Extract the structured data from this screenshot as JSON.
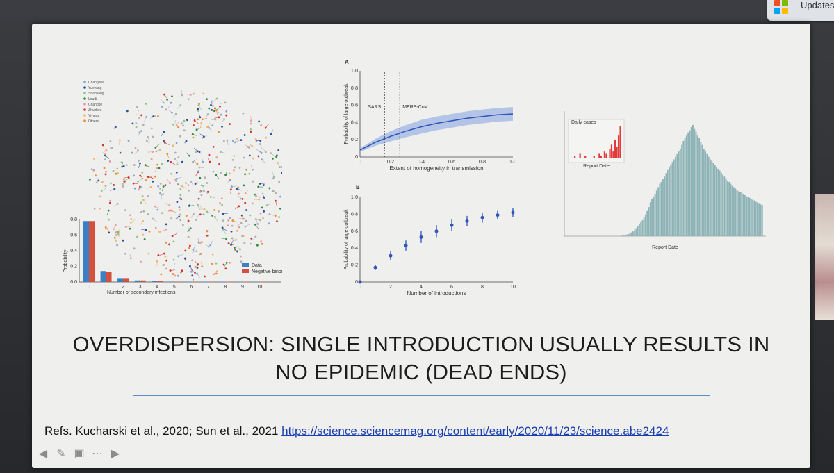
{
  "window": {
    "updates_label": "Updates"
  },
  "slide": {
    "title_line1": "OVERDISPERSION: SINGLE INTRODUCTION USUALLY RESULTS IN",
    "title_line2": "NO EPIDEMIC (DEAD ENDS)",
    "refs_text": "Refs. Kucharski et al., 2020; Sun et al., 2021 ",
    "refs_link": "https://science.sciencemag.org/content/early/2020/11/23/science.abe2424"
  },
  "network": {
    "legend": [
      {
        "label": "Changsha",
        "color": "#7fa6d6"
      },
      {
        "label": "Yueyang",
        "color": "#2b4fa0"
      },
      {
        "label": "Shaoyang",
        "color": "#8cc48a"
      },
      {
        "label": "Loudi",
        "color": "#2d8a3e"
      },
      {
        "label": "Changde",
        "color": "#e99aa0"
      },
      {
        "label": "Zhuzhou",
        "color": "#d3322c"
      },
      {
        "label": "Yiyang",
        "color": "#f2b46b"
      },
      {
        "label": "Others",
        "color": "#f08a2a"
      }
    ]
  },
  "colors": {
    "data_bar": "#3c7fc4",
    "nb_bar": "#d3503c",
    "curve": "#2f55b8",
    "band": "#9fb6e4",
    "histo": "#8fb4b8",
    "inset": "#e03a3a"
  },
  "chart_data": [
    {
      "type": "bar",
      "xlabel": "Number of secondary infections",
      "ylabel": "Probability",
      "categories": [
        "0",
        "1",
        "2",
        "3",
        "4",
        "5",
        "6",
        "7",
        "8",
        "9",
        "10"
      ],
      "series": [
        {
          "name": "Data",
          "values": [
            0.78,
            0.14,
            0.05,
            0.02,
            0.01,
            0.005,
            0.003,
            0.002,
            0.001,
            0.001,
            0.001
          ]
        },
        {
          "name": "Negative binomial",
          "values": [
            0.78,
            0.13,
            0.05,
            0.02,
            0.01,
            0.005,
            0.003,
            0.002,
            0.001,
            0.001,
            0.001
          ]
        }
      ],
      "ylim": [
        0,
        0.8
      ],
      "yticks": [
        "0.0",
        "0.2",
        "0.4",
        "0.6",
        "0.8"
      ],
      "legend": "bottom-right"
    },
    {
      "type": "line",
      "panel": "A",
      "xlabel": "Extent of homogeneity in transmission",
      "ylabel": "Probability of large outbreak",
      "xlim": [
        0,
        1.0
      ],
      "ylim": [
        0,
        1.0
      ],
      "xticks": [
        "0",
        "0·2",
        "0·4",
        "0·6",
        "0·8",
        "1·0"
      ],
      "yticks": [
        "0",
        "0·2",
        "0·4",
        "0·6",
        "0·8",
        "1·0"
      ],
      "x": [
        0,
        0.1,
        0.2,
        0.3,
        0.4,
        0.5,
        0.6,
        0.7,
        0.8,
        0.9,
        1.0
      ],
      "y": [
        0.08,
        0.17,
        0.24,
        0.3,
        0.35,
        0.39,
        0.42,
        0.45,
        0.47,
        0.49,
        0.5
      ],
      "lower": [
        0.06,
        0.13,
        0.18,
        0.23,
        0.27,
        0.31,
        0.34,
        0.37,
        0.39,
        0.41,
        0.42
      ],
      "upper": [
        0.1,
        0.21,
        0.3,
        0.37,
        0.43,
        0.47,
        0.5,
        0.53,
        0.55,
        0.57,
        0.58
      ],
      "annotations": [
        {
          "label": "SARS",
          "x": 0.16
        },
        {
          "label": "MERS-CoV",
          "x": 0.26
        }
      ]
    },
    {
      "type": "scatter",
      "panel": "B",
      "xlabel": "Number of introductions",
      "ylabel": "Probability of large outbreak",
      "xlim": [
        0,
        10
      ],
      "ylim": [
        0,
        1.0
      ],
      "xticks": [
        "0",
        "2",
        "4",
        "6",
        "8",
        "10"
      ],
      "yticks": [
        "0",
        "0·2",
        "0·4",
        "0·6",
        "0·8",
        "1·0"
      ],
      "x": [
        0,
        1,
        2,
        3,
        4,
        5,
        6,
        7,
        8,
        9,
        10
      ],
      "y": [
        0,
        0.17,
        0.31,
        0.43,
        0.53,
        0.6,
        0.67,
        0.72,
        0.76,
        0.79,
        0.82
      ],
      "err": [
        0,
        0.03,
        0.05,
        0.06,
        0.07,
        0.07,
        0.07,
        0.06,
        0.06,
        0.05,
        0.05
      ]
    },
    {
      "type": "bar",
      "xlabel": "Report Date",
      "inset_xlabel": "Report Date",
      "inset_title": "Daily cases",
      "values": [
        2,
        3,
        5,
        6,
        8,
        10,
        14,
        18,
        22,
        30,
        38,
        45,
        52,
        60,
        70,
        82,
        95,
        110,
        128,
        140,
        150,
        160,
        172,
        185,
        198,
        205,
        215,
        225,
        238,
        250,
        262,
        270,
        280,
        290,
        300,
        310,
        320,
        330,
        345,
        360,
        372,
        380,
        392,
        400,
        412,
        420,
        405,
        395,
        380,
        370,
        355,
        345,
        330,
        320,
        310,
        300,
        290,
        285,
        278,
        270,
        262,
        255,
        248,
        240,
        232,
        225,
        218,
        210,
        205,
        198,
        190,
        185,
        180,
        175,
        170,
        168,
        165,
        160,
        155,
        150,
        148,
        145,
        140,
        138,
        135,
        130,
        128,
        125,
        120,
        118
      ],
      "inset_values": [
        1,
        0,
        0,
        2,
        0,
        0,
        1,
        0,
        0,
        0,
        0,
        1,
        0,
        0,
        2,
        1,
        0,
        3,
        2,
        0,
        4,
        6,
        3,
        8,
        5,
        10,
        14
      ]
    }
  ]
}
